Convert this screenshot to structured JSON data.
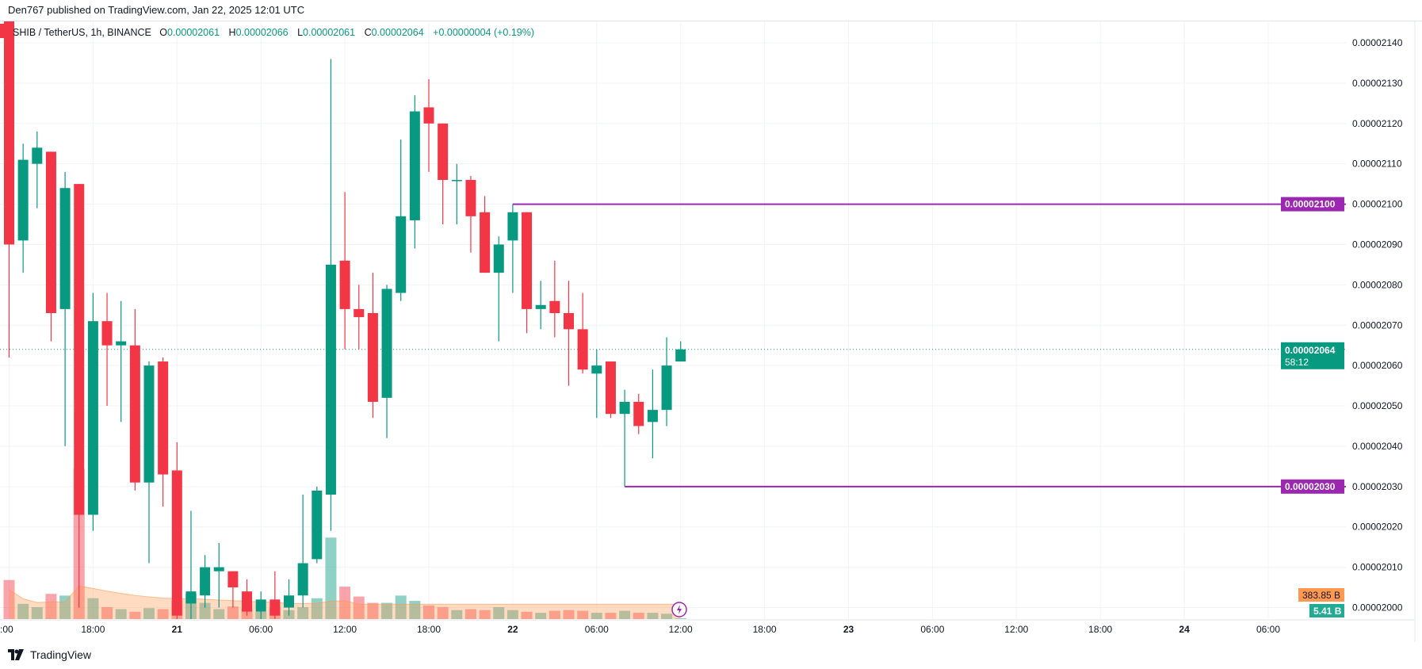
{
  "header": {
    "published": "Den767 published on TradingView.com, Jan 22, 2025 12:01 UTC"
  },
  "legend": {
    "symbol": "SHIB / TetherUS, 1h, BINANCE",
    "o_label": "O",
    "o": "0.00002061",
    "h_label": "H",
    "h": "0.00002066",
    "l_label": "L",
    "l": "0.00002061",
    "c_label": "C",
    "c": "0.00002064",
    "change": "+0.00000004 (+0.19%)"
  },
  "colors": {
    "up": "#089981",
    "down": "#f23645",
    "level": "#9c27b0",
    "volume_ma": "#ff9850",
    "volume_label": "#22ab94"
  },
  "chart_data": {
    "type": "candlestick",
    "interval": "1h",
    "price_ticks": [
      "0.00002140",
      "0.00002130",
      "0.00002120",
      "0.00002110",
      "0.00002100",
      "0.00002090",
      "0.00002080",
      "0.00002070",
      "0.00002060",
      "0.00002050",
      "0.00002040",
      "0.00002030",
      "0.00002020",
      "0.00002010",
      "0.00002000"
    ],
    "ylim": [
      2e-05,
      2.14e-05
    ],
    "time_ticks": [
      {
        "label": ":00",
        "hour": 0
      },
      {
        "label": "18:00",
        "hour": 6
      },
      {
        "label": "21",
        "hour": 12
      },
      {
        "label": "06:00",
        "hour": 18
      },
      {
        "label": "12:00",
        "hour": 24
      },
      {
        "label": "18:00",
        "hour": 30
      },
      {
        "label": "22",
        "hour": 36
      },
      {
        "label": "06:00",
        "hour": 42
      },
      {
        "label": "12:00",
        "hour": 48
      },
      {
        "label": "18:00",
        "hour": 54
      },
      {
        "label": "23",
        "hour": 60
      },
      {
        "label": "06:00",
        "hour": 66
      },
      {
        "label": "12:00",
        "hour": 72
      },
      {
        "label": "18:00",
        "hour": 78
      },
      {
        "label": "24",
        "hour": 84
      },
      {
        "label": "06:00",
        "hour": 90
      }
    ],
    "candles": [
      {
        "o": 2.15e-05,
        "h": 2.155e-05,
        "l": 2.062e-05,
        "c": 2.09e-05,
        "v": 590
      },
      {
        "o": 2.091e-05,
        "h": 2.115e-05,
        "l": 2.083e-05,
        "c": 2.111e-05,
        "v": 230
      },
      {
        "o": 2.11e-05,
        "h": 2.118e-05,
        "l": 2.099e-05,
        "c": 2.114e-05,
        "v": 180
      },
      {
        "o": 2.113e-05,
        "h": 2.113e-05,
        "l": 2.066e-05,
        "c": 2.073e-05,
        "v": 380
      },
      {
        "o": 2.074e-05,
        "h": 2.108e-05,
        "l": 2.04e-05,
        "c": 2.104e-05,
        "v": 355
      },
      {
        "o": 2.105e-05,
        "h": 2.105e-05,
        "l": 2e-05,
        "c": 2.023e-05,
        "v": 2270
      },
      {
        "o": 2.023e-05,
        "h": 2.078e-05,
        "l": 2.019e-05,
        "c": 2.071e-05,
        "v": 315
      },
      {
        "o": 2.071e-05,
        "h": 2.078e-05,
        "l": 2.05e-05,
        "c": 2.065e-05,
        "v": 180
      },
      {
        "o": 2.065e-05,
        "h": 2.076e-05,
        "l": 2.046e-05,
        "c": 2.066e-05,
        "v": 150
      },
      {
        "o": 2.065e-05,
        "h": 2.074e-05,
        "l": 2.029e-05,
        "c": 2.031e-05,
        "v": 110
      },
      {
        "o": 2.031e-05,
        "h": 2.061e-05,
        "l": 2.011e-05,
        "c": 2.06e-05,
        "v": 165
      },
      {
        "o": 2.061e-05,
        "h": 2.062e-05,
        "l": 2.025e-05,
        "c": 2.033e-05,
        "v": 150
      },
      {
        "o": 2.034e-05,
        "h": 2.041e-05,
        "l": 1.995e-05,
        "c": 1.998e-05,
        "v": 275
      },
      {
        "o": 2.001e-05,
        "h": 2.024e-05,
        "l": 1.995e-05,
        "c": 2.004e-05,
        "v": 380
      },
      {
        "o": 2.003e-05,
        "h": 2.013e-05,
        "l": 2e-05,
        "c": 2.01e-05,
        "v": 245
      },
      {
        "o": 2.009e-05,
        "h": 2.016e-05,
        "l": 2e-05,
        "c": 2.01e-05,
        "v": 150
      },
      {
        "o": 2.009e-05,
        "h": 2.009e-05,
        "l": 2e-05,
        "c": 2.005e-05,
        "v": 190
      },
      {
        "o": 2.004e-05,
        "h": 2.007e-05,
        "l": 1.998e-05,
        "c": 1.999e-05,
        "v": 150
      },
      {
        "o": 1.999e-05,
        "h": 2.004e-05,
        "l": 1.996e-05,
        "c": 2.002e-05,
        "v": 110
      },
      {
        "o": 2.002e-05,
        "h": 2.009e-05,
        "l": 1.997e-05,
        "c": 1.998e-05,
        "v": 180
      },
      {
        "o": 2e-05,
        "h": 2.007e-05,
        "l": 1.998e-05,
        "c": 2.003e-05,
        "v": 135
      },
      {
        "o": 2.003e-05,
        "h": 2.028e-05,
        "l": 2e-05,
        "c": 2.011e-05,
        "v": 180
      },
      {
        "o": 2.012e-05,
        "h": 2.03e-05,
        "l": 2.011e-05,
        "c": 2.029e-05,
        "v": 315
      },
      {
        "o": 2.028e-05,
        "h": 2.136e-05,
        "l": 2.019e-05,
        "c": 2.085e-05,
        "v": 1230
      },
      {
        "o": 2.086e-05,
        "h": 2.103e-05,
        "l": 2.064e-05,
        "c": 2.074e-05,
        "v": 490
      },
      {
        "o": 2.074e-05,
        "h": 2.08e-05,
        "l": 2.064e-05,
        "c": 2.072e-05,
        "v": 340
      },
      {
        "o": 2.073e-05,
        "h": 2.083e-05,
        "l": 2.047e-05,
        "c": 2.051e-05,
        "v": 245
      },
      {
        "o": 2.052e-05,
        "h": 2.08e-05,
        "l": 2.042e-05,
        "c": 2.079e-05,
        "v": 245
      },
      {
        "o": 2.078e-05,
        "h": 2.116e-05,
        "l": 2.076e-05,
        "c": 2.097e-05,
        "v": 355
      },
      {
        "o": 2.096e-05,
        "h": 2.127e-05,
        "l": 2.089e-05,
        "c": 2.123e-05,
        "v": 275
      },
      {
        "o": 2.124e-05,
        "h": 2.131e-05,
        "l": 2.108e-05,
        "c": 2.12e-05,
        "v": 205
      },
      {
        "o": 2.12e-05,
        "h": 2.12e-05,
        "l": 2.095e-05,
        "c": 2.106e-05,
        "v": 180
      },
      {
        "o": 2.106e-05,
        "h": 2.11e-05,
        "l": 2.095e-05,
        "c": 2.106e-05,
        "v": 135
      },
      {
        "o": 2.106e-05,
        "h": 2.107e-05,
        "l": 2.088e-05,
        "c": 2.097e-05,
        "v": 150
      },
      {
        "o": 2.098e-05,
        "h": 2.102e-05,
        "l": 2.083e-05,
        "c": 2.083e-05,
        "v": 135
      },
      {
        "o": 2.083e-05,
        "h": 2.092e-05,
        "l": 2.066e-05,
        "c": 2.09e-05,
        "v": 180
      },
      {
        "o": 2.091e-05,
        "h": 2.1e-05,
        "l": 2.078e-05,
        "c": 2.098e-05,
        "v": 135
      },
      {
        "o": 2.098e-05,
        "h": 2.098e-05,
        "l": 2.068e-05,
        "c": 2.074e-05,
        "v": 110
      },
      {
        "o": 2.074e-05,
        "h": 2.081e-05,
        "l": 2.069e-05,
        "c": 2.075e-05,
        "v": 95
      },
      {
        "o": 2.076e-05,
        "h": 2.086e-05,
        "l": 2.067e-05,
        "c": 2.073e-05,
        "v": 125
      },
      {
        "o": 2.073e-05,
        "h": 2.081e-05,
        "l": 2.055e-05,
        "c": 2.069e-05,
        "v": 135
      },
      {
        "o": 2.069e-05,
        "h": 2.078e-05,
        "l": 2.058e-05,
        "c": 2.059e-05,
        "v": 125
      },
      {
        "o": 2.058e-05,
        "h": 2.064e-05,
        "l": 2.047e-05,
        "c": 2.06e-05,
        "v": 95
      },
      {
        "o": 2.061e-05,
        "h": 2.061e-05,
        "l": 2.047e-05,
        "c": 2.048e-05,
        "v": 95
      },
      {
        "o": 2.048e-05,
        "h": 2.054e-05,
        "l": 2.03e-05,
        "c": 2.051e-05,
        "v": 125
      },
      {
        "o": 2.051e-05,
        "h": 2.053e-05,
        "l": 2.043e-05,
        "c": 2.045e-05,
        "v": 95
      },
      {
        "o": 2.046e-05,
        "h": 2.059e-05,
        "l": 2.037e-05,
        "c": 2.049e-05,
        "v": 95
      },
      {
        "o": 2.049e-05,
        "h": 2.067e-05,
        "l": 2.045e-05,
        "c": 2.06e-05,
        "v": 80
      },
      {
        "o": 2.061e-05,
        "h": 2.066e-05,
        "l": 2.061e-05,
        "c": 2.064e-05,
        "v": 5.41
      }
    ],
    "levels": [
      {
        "price": 2.1e-05,
        "label": "0.00002100",
        "from_candle": 36
      },
      {
        "price": 2.03e-05,
        "label": "0.00002030",
        "from_candle": 44
      }
    ],
    "last_price": {
      "label": "0.00002064",
      "countdown": "58:12",
      "value": 2.064e-05
    },
    "volume_ma_label": "383.85 B",
    "volume_label": "5.41 B"
  },
  "footer": {
    "brand": "TradingView"
  }
}
